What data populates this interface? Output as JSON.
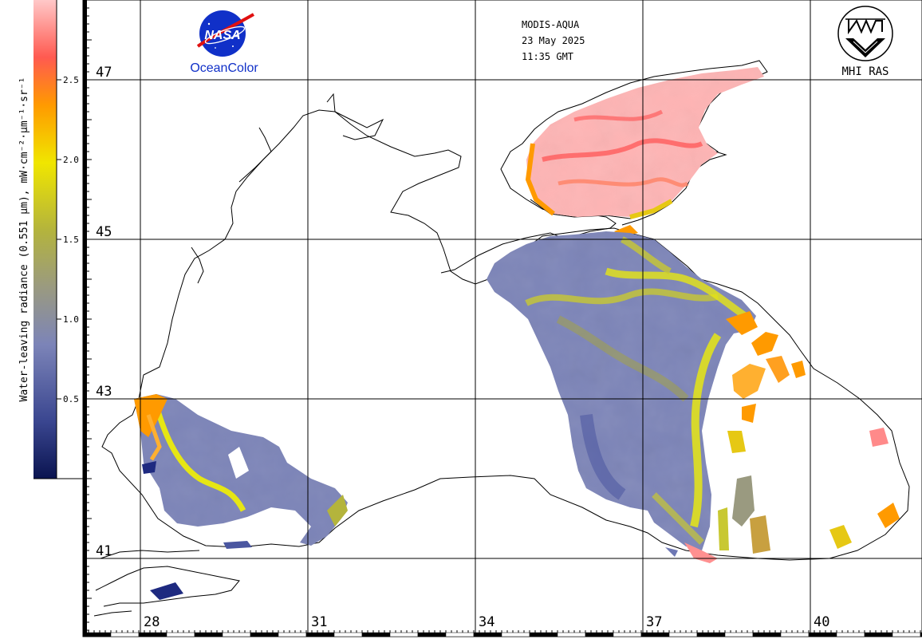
{
  "colorbar": {
    "title": "Water-leaving radiance (0.551 µm), mW·cm⁻²·µm⁻¹·sr⁻¹",
    "ticks": [
      {
        "value": 2.5,
        "label": "2.5"
      },
      {
        "value": 2.0,
        "label": "2.0"
      },
      {
        "value": 1.5,
        "label": "1.5"
      },
      {
        "value": 1.0,
        "label": "1.0"
      },
      {
        "value": 0.5,
        "label": "0.5"
      }
    ],
    "range": [
      0,
      3.0
    ],
    "stops": [
      "#0a1450",
      "#6e78b4",
      "#96a064",
      "#e6e614",
      "#ff8a0a",
      "#ff5050",
      "#ffb4b4"
    ]
  },
  "header": {
    "sensor": "MODIS-AQUA",
    "date": "23 May 2025",
    "time": "11:35 GMT"
  },
  "logo_left": {
    "badge": "NASA",
    "caption": "OceanColor",
    "badge_icon": "nasa-meatball-icon"
  },
  "logo_right": {
    "caption": "MHI RAS",
    "icon": "mhi-ras-emblem-icon"
  },
  "map": {
    "lat_labels": [
      "47",
      "45",
      "43",
      "41"
    ],
    "lon_labels": [
      "28",
      "31",
      "34",
      "37",
      "40"
    ]
  }
}
